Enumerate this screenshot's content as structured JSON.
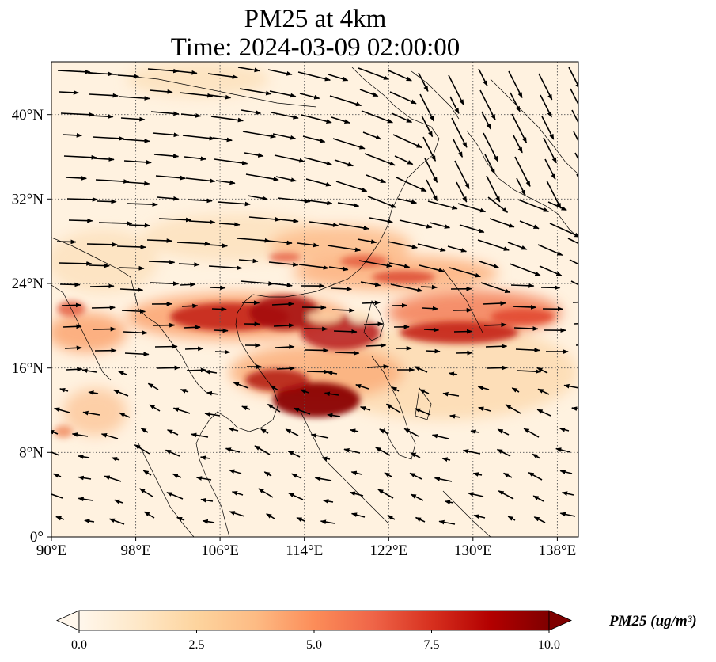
{
  "title": {
    "line1": "PM25 at 4km",
    "line2": "Time: 2024-03-09 02:00:00"
  },
  "map": {
    "lon_range": [
      90,
      140
    ],
    "lat_range": [
      0,
      45
    ],
    "lon_ticks": [
      "90°E",
      "98°E",
      "106°E",
      "114°E",
      "122°E",
      "130°E",
      "138°E"
    ],
    "lat_ticks": [
      "0°",
      "8°N",
      "16°N",
      "24°N",
      "32°N",
      "40°N"
    ],
    "gridlines": true,
    "colormap": "OrRd"
  },
  "colorbar": {
    "label": "PM25 (ug/m³)",
    "ticks": [
      "0.0",
      "2.5",
      "5.0",
      "7.5",
      "10.0"
    ],
    "range": [
      0,
      10
    ],
    "extend": "both"
  },
  "colors": {
    "background_low": "#fff7ec",
    "mid": "#fdd49e",
    "high": "#ef6548",
    "max": "#7f0000"
  }
}
